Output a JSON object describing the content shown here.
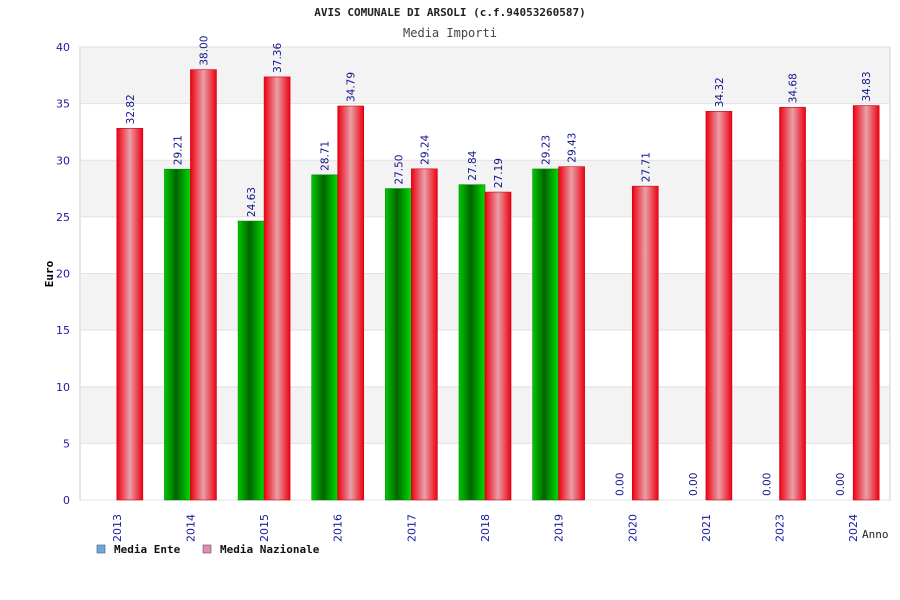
{
  "chart_data": {
    "type": "bar",
    "title": "AVIS COMUNALE DI ARSOLI (c.f.94053260587)",
    "subtitle": "Media Importi",
    "xlabel": "Anno",
    "ylabel": "Euro",
    "ylim": [
      0,
      40
    ],
    "yticks": [
      "0",
      "5",
      "10",
      "15",
      "20",
      "25",
      "30",
      "35",
      "40"
    ],
    "grid": true,
    "legend_position": "bottom-left",
    "categories": [
      "2013",
      "2014",
      "2015",
      "2016",
      "2017",
      "2018",
      "2019",
      "2020",
      "2021",
      "2023",
      "2024"
    ],
    "series": [
      {
        "name": "Media Ente",
        "values": [
          null,
          29.21,
          24.63,
          28.71,
          27.5,
          27.84,
          29.23,
          0.0,
          0.0,
          0.0,
          0.0
        ],
        "labels": [
          "",
          "29.21",
          "24.63",
          "28.71",
          "27.50",
          "27.84",
          "29.23",
          "0.00",
          "0.00",
          "0.00",
          "0.00"
        ],
        "color": "#00b400",
        "legend_color": "#6aa6e8"
      },
      {
        "name": "Media Nazionale",
        "values": [
          32.82,
          38.0,
          37.36,
          34.79,
          29.24,
          27.19,
          29.43,
          27.71,
          34.32,
          34.68,
          34.83
        ],
        "labels": [
          "32.82",
          "38.00",
          "37.36",
          "34.79",
          "29.24",
          "27.19",
          "29.43",
          "27.71",
          "34.32",
          "34.68",
          "34.83"
        ],
        "color": "#ee1122",
        "legend_color": "#e48ab8"
      }
    ]
  }
}
